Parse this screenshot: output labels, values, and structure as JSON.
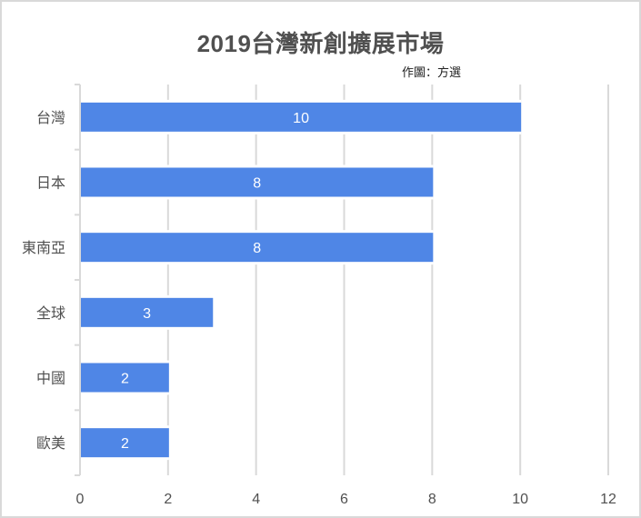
{
  "chart": {
    "title": "2019台灣新創擴展市場",
    "subtitle": "作圖：方選"
  },
  "chart_data": {
    "type": "bar",
    "orientation": "horizontal",
    "title": "2019台灣新創擴展市場",
    "subtitle": "作圖：方選",
    "categories": [
      "台灣",
      "日本",
      "東南亞",
      "全球",
      "中國",
      "歐美"
    ],
    "values": [
      10,
      8,
      8,
      3,
      2,
      2
    ],
    "data_labels": [
      "10",
      "8",
      "8",
      "3",
      "2",
      "2"
    ],
    "xlabel": "",
    "ylabel": "",
    "xlim": [
      0,
      12
    ],
    "x_ticks": [
      0,
      2,
      4,
      6,
      8,
      10,
      12
    ],
    "grid": "vertical",
    "legend": "none",
    "bar_color": "#4f86e6",
    "grid_color": "#d9d9d9"
  }
}
